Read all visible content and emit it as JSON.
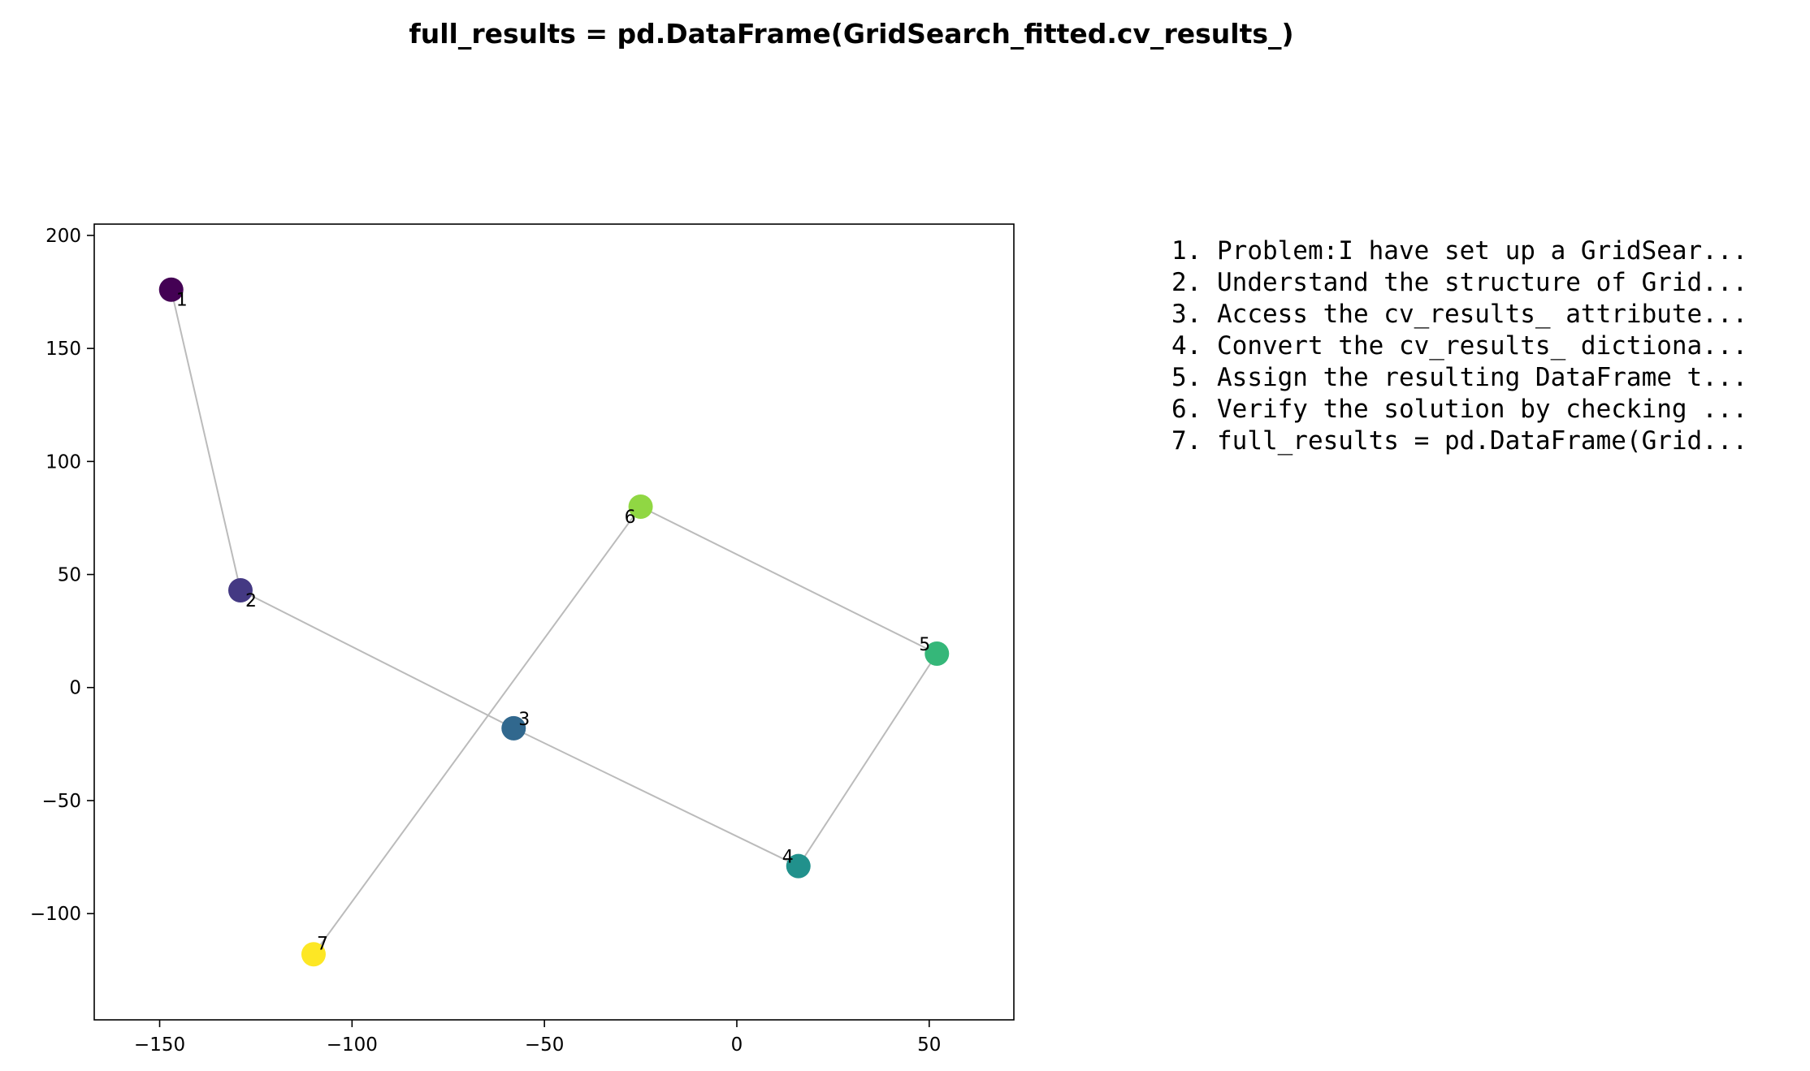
{
  "chart_data": {
    "type": "scatter",
    "title": "full_results = pd.DataFrame(GridSearch_fitted.cv_results_)",
    "xlabel": "",
    "ylabel": "",
    "xlim": [
      -167,
      72
    ],
    "ylim": [
      -147,
      205
    ],
    "xticks": [
      -150,
      -100,
      -50,
      0,
      50
    ],
    "yticks": [
      -100,
      -50,
      0,
      50,
      100,
      150,
      200
    ],
    "xtick_labels": [
      "−150",
      "−100",
      "−50",
      "0",
      "50"
    ],
    "ytick_labels": [
      "−100",
      "−50",
      "0",
      "50",
      "100",
      "150",
      "200"
    ],
    "grid": false,
    "connect_points": true,
    "line_color": "#bbbbbb",
    "colormap": "viridis",
    "points": [
      {
        "label": "1",
        "x": -147,
        "y": 176,
        "color": "#440154"
      },
      {
        "label": "2",
        "x": -129,
        "y": 43,
        "color": "#443983"
      },
      {
        "label": "3",
        "x": -58,
        "y": -18,
        "color": "#31688e"
      },
      {
        "label": "4",
        "x": 16,
        "y": -79,
        "color": "#21918c"
      },
      {
        "label": "5",
        "x": 52,
        "y": 15,
        "color": "#35b779"
      },
      {
        "label": "6",
        "x": -25,
        "y": 80,
        "color": "#90d743"
      },
      {
        "label": "7",
        "x": -110,
        "y": -118,
        "color": "#fde725"
      }
    ],
    "annotations": [
      "1. Problem:I have set up a GridSear...",
      "2. Understand the structure of Grid...",
      "3. Access the cv_results_ attribute...",
      "4. Convert the cv_results_ dictiona...",
      "5. Assign the resulting DataFrame t...",
      "6. Verify the solution by checking ...",
      "7. full_results = pd.DataFrame(Grid..."
    ]
  }
}
